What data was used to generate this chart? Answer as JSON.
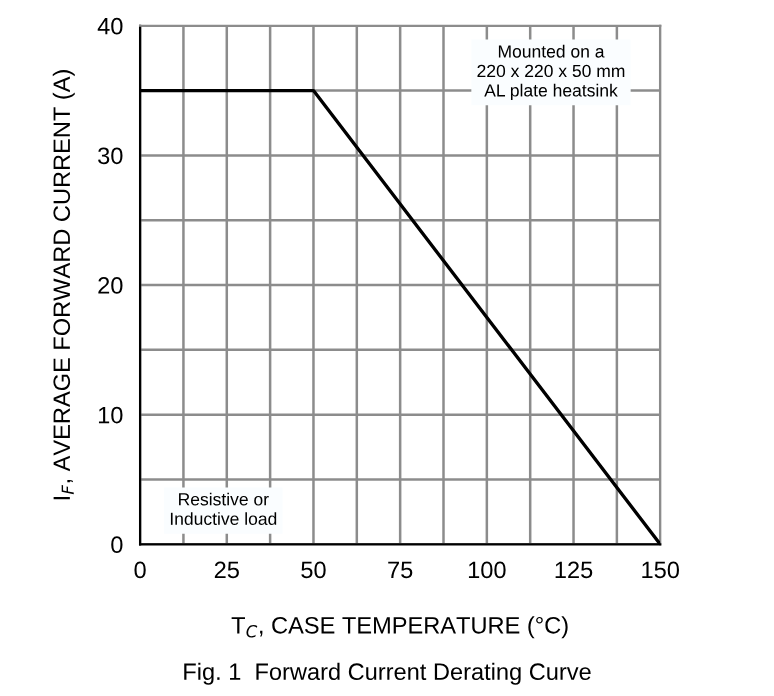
{
  "chart_data": {
    "type": "line",
    "title": "Fig. 1  Forward Current Derating Curve",
    "xlabel": "T$_{C}$, CASE TEMPERATURE (°C)",
    "ylabel": "I$_{F}$, AVERAGE FORWARD CURRENT (A)",
    "x": [
      0,
      50,
      150
    ],
    "series": [
      {
        "color": "#000000",
        "values": [
          35,
          35,
          0
        ]
      }
    ],
    "xlim": [
      0,
      150
    ],
    "ylim": [
      0,
      40
    ],
    "xticks": [
      0,
      {
        "value": 12.5,
        "label": null
      },
      25,
      {
        "value": 37.5,
        "label": null
      },
      50,
      {
        "value": 62.5,
        "label": null
      },
      75,
      {
        "value": 87.5,
        "label": null
      },
      100,
      {
        "value": 112.5,
        "label": null
      },
      125,
      {
        "value": 137.5,
        "label": null
      },
      150
    ],
    "yticks": [
      0,
      {
        "value": 5,
        "label": null
      },
      10,
      {
        "value": 15,
        "label": null
      },
      20,
      {
        "value": 25,
        "label": null
      },
      30,
      {
        "value": 35,
        "label": null
      },
      40
    ],
    "grid": true,
    "marker": "none",
    "line_style": "solid",
    "annotations": [
      "Mounted on a\n220 x 220 x 50 mm\nAL plate heatsink",
      "Resistive or\nInductive load"
    ]
  }
}
